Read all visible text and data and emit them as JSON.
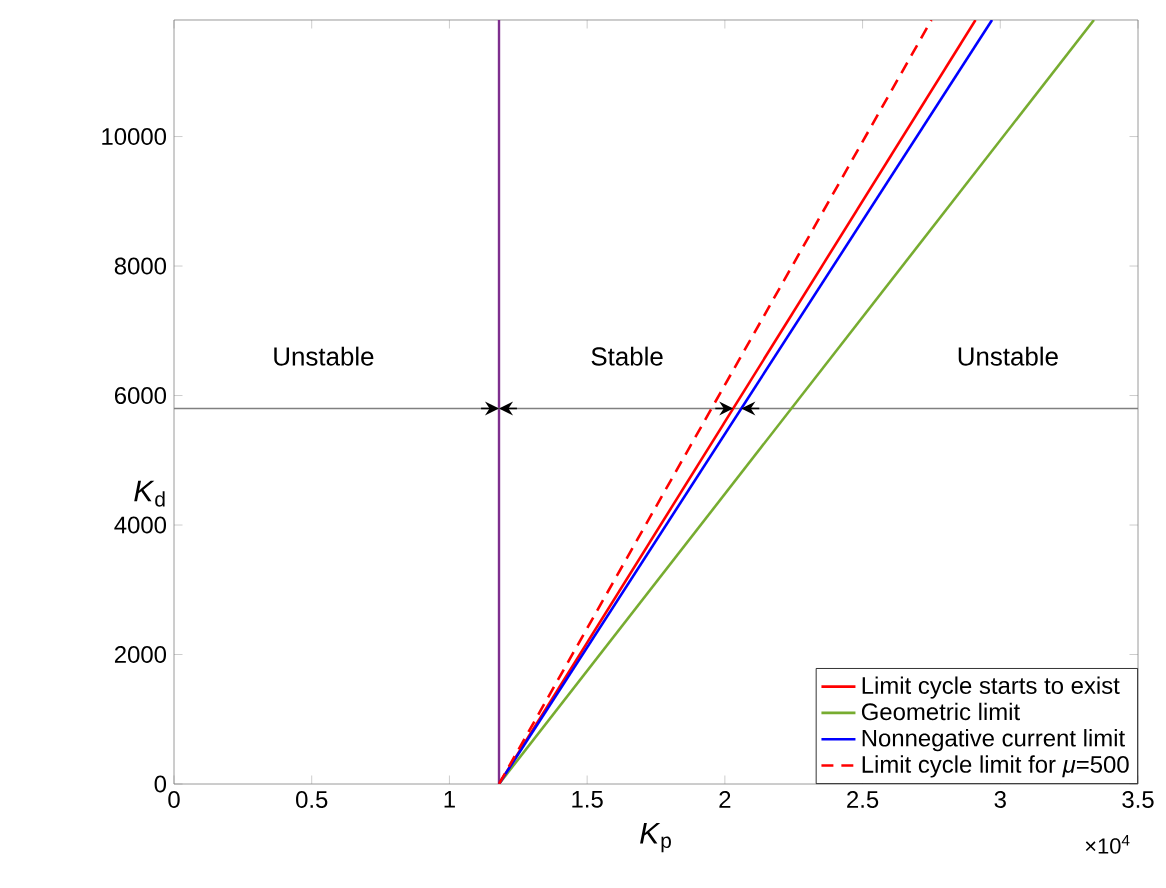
{
  "chart_data": {
    "type": "line",
    "xlabel": "*K*$_{p}$",
    "ylabel": "*K*$_{d}$",
    "xlim": [
      0,
      3.5
    ],
    "ylim": [
      0,
      11800
    ],
    "xticks": [
      0,
      0.5,
      1,
      1.5,
      2,
      2.5,
      3,
      3.5
    ],
    "yticks": [
      0,
      2000,
      4000,
      6000,
      8000,
      10000
    ],
    "series": [
      {
        "name": "Limit cycle starts to exist",
        "color": "#ff0000",
        "x": [
          1.18,
          2.91
        ],
        "values": [
          0,
          11800
        ]
      },
      {
        "name": "Geometric limit",
        "color": "#77ac30",
        "x": [
          1.18,
          3.34
        ],
        "values": [
          0,
          11800
        ]
      },
      {
        "name": "Nonnegative current limit",
        "color": "#0000ff",
        "x": [
          1.18,
          2.97
        ],
        "values": [
          0,
          11800
        ]
      },
      {
        "name": "Limit cycle limit for *μ*=500",
        "color": "#ff0000",
        "line_style": "dashed",
        "x": [
          1.18,
          2.75
        ],
        "values": [
          0,
          11800
        ]
      }
    ],
    "ref_lines": [
      {
        "axis": "x",
        "value": 1.18,
        "color": "#7e2f8e"
      },
      {
        "axis": "y",
        "value": 5800,
        "color": "#808080"
      }
    ],
    "annotations": [
      "Unstable",
      "Stable",
      "Unstable",
      "×10$^{4}$"
    ],
    "legend": "bottom right",
    "line_style": "solid",
    "marker": "none"
  }
}
